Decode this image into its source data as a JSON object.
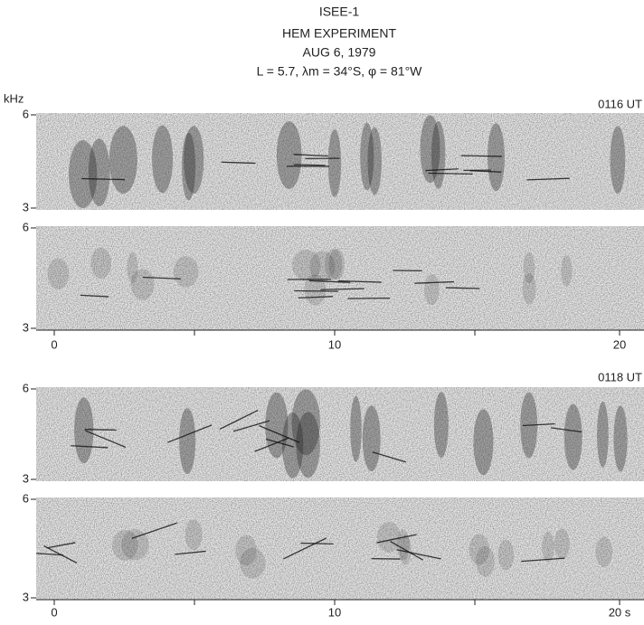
{
  "header": {
    "title": "ISEE-1",
    "experiment": "HEM EXPERIMENT",
    "date": "AUG 6, 1979",
    "coordinates": "L = 5.7, λm = 34°S, φ = 81°W"
  },
  "y_unit": "kHz",
  "groups": [
    {
      "time": "0116 UT",
      "panels": [
        {
          "y_top": 6,
          "y_bottom": 3
        },
        {
          "y_top": 6,
          "y_bottom": 3
        }
      ],
      "x_labels": [
        0,
        10,
        20
      ]
    },
    {
      "time": "0118 UT",
      "panels": [
        {
          "y_top": 6,
          "y_bottom": 3
        },
        {
          "y_top": 6,
          "y_bottom": 3
        }
      ],
      "x_labels": [
        0,
        10,
        "20 s"
      ]
    }
  ]
}
